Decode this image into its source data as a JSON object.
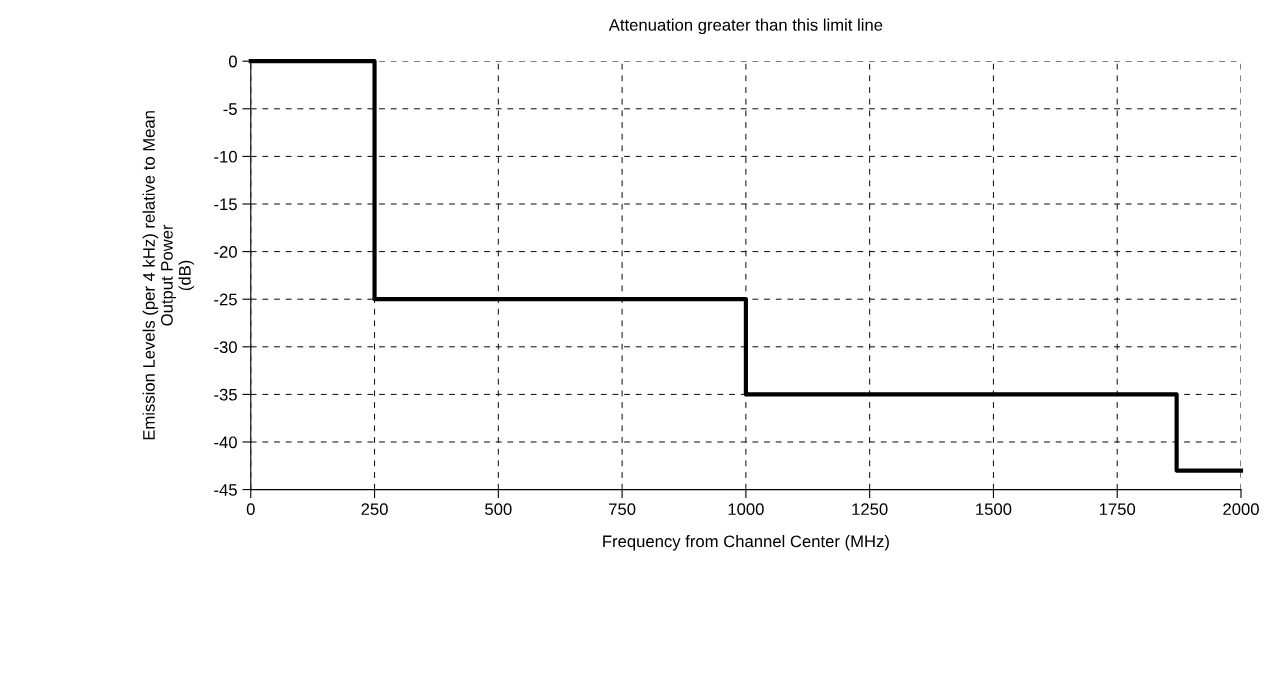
{
  "chart_data": {
    "type": "step",
    "title": "Attenuation greater than this limit line",
    "xlabel": "Frequency from Channel Center (MHz)",
    "ylabel": "Emission Levels (per 4 kHz) relative to Mean\nOutput Power\n(dB)",
    "x": [
      0,
      250,
      1000,
      1870,
      2000
    ],
    "series": [
      {
        "color": "#000000",
        "values": [
          0,
          -25,
          -35,
          -43,
          -43
        ]
      }
    ],
    "xlim": [
      0,
      2000
    ],
    "xticks": [
      0,
      250,
      500,
      750,
      1000,
      1250,
      1500,
      1750,
      2000
    ],
    "ylim": [
      -45,
      0
    ],
    "yticks": [
      0,
      -5,
      -10,
      -15,
      -20,
      -25,
      -30,
      -35,
      -40,
      -45
    ],
    "grid": true,
    "line_style": "solid",
    "marker": "none"
  }
}
